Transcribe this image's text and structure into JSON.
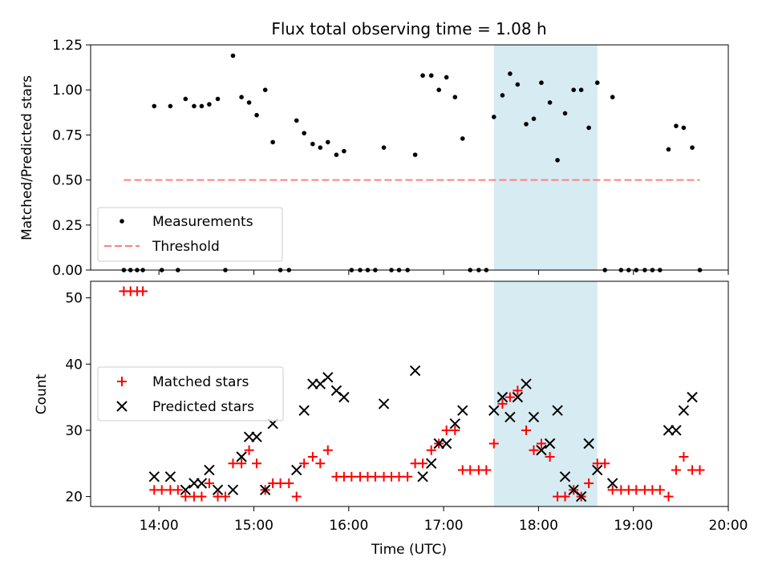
{
  "figure": {
    "title": "Flux total observing time = 1.08 h",
    "xlabel": "Time (UTC)",
    "xticks": [
      "14:00",
      "15:00",
      "16:00",
      "17:00",
      "18:00",
      "19:00",
      "20:00"
    ],
    "top_ylabel": "Matched/Predicted stars",
    "top_yticks": [
      "0.00",
      "0.25",
      "0.50",
      "0.75",
      "1.00",
      "1.25"
    ],
    "bottom_ylabel": "Count",
    "bottom_yticks": [
      "20",
      "30",
      "40",
      "50"
    ],
    "top_legend": [
      "Measurements",
      "Threshold"
    ],
    "bottom_legend": [
      "Matched stars",
      "Predicted stars"
    ]
  },
  "colors": {
    "measurement": "#000000",
    "threshold": "#ff7f7f",
    "matched": "#ff0000",
    "predicted": "#000000",
    "highlight": "#add8e6"
  },
  "chart_data": [
    {
      "type": "scatter",
      "title": "Flux total observing time = 1.08 h",
      "xlabel": "",
      "ylabel": "Matched/Predicted stars",
      "xlim": [
        13.28,
        20.0
      ],
      "ylim": [
        0.0,
        1.25
      ],
      "legend_position": "lower-left",
      "highlight_span": [
        17.53,
        18.62
      ],
      "threshold": {
        "name": "Threshold",
        "y": 0.5,
        "x": [
          13.63,
          19.7
        ]
      },
      "series": [
        {
          "name": "Measurements",
          "x": [
            13.63,
            13.7,
            13.77,
            13.83,
            13.95,
            14.03,
            14.12,
            14.2,
            14.28,
            14.37,
            14.45,
            14.53,
            14.62,
            14.7,
            14.78,
            14.87,
            14.95,
            15.03,
            15.12,
            15.2,
            15.28,
            15.37,
            15.45,
            15.53,
            15.62,
            15.7,
            15.78,
            15.87,
            15.95,
            16.03,
            16.12,
            16.2,
            16.28,
            16.37,
            16.45,
            16.53,
            16.62,
            16.7,
            16.78,
            16.87,
            16.95,
            17.03,
            17.12,
            17.2,
            17.28,
            17.37,
            17.45,
            17.53,
            17.62,
            17.7,
            17.78,
            17.87,
            17.95,
            18.03,
            18.12,
            18.2,
            18.28,
            18.37,
            18.45,
            18.53,
            18.62,
            18.7,
            18.78,
            18.87,
            18.95,
            19.03,
            19.12,
            19.2,
            19.28,
            19.37,
            19.45,
            19.53,
            19.62,
            19.7
          ],
          "y": [
            0.0,
            0.0,
            0.0,
            0.0,
            0.91,
            0.0,
            0.91,
            0.0,
            0.95,
            0.91,
            0.91,
            0.92,
            0.95,
            0.0,
            1.19,
            0.96,
            0.93,
            0.86,
            1.0,
            0.71,
            0.0,
            0.0,
            0.83,
            0.76,
            0.7,
            0.68,
            0.71,
            0.64,
            0.66,
            0.0,
            0.0,
            0.0,
            0.0,
            0.68,
            0.0,
            0.0,
            0.0,
            0.64,
            1.08,
            1.08,
            1.0,
            1.07,
            0.96,
            0.73,
            0.0,
            0.0,
            0.0,
            0.85,
            0.97,
            1.09,
            1.03,
            0.81,
            0.84,
            1.04,
            0.93,
            0.61,
            0.87,
            1.0,
            1.0,
            0.79,
            1.04,
            0.0,
            0.96,
            0.0,
            0.0,
            0.0,
            0.0,
            0.0,
            0.0,
            0.67,
            0.8,
            0.79,
            0.68,
            0.0
          ]
        }
      ]
    },
    {
      "type": "scatter",
      "title": "",
      "xlabel": "Time (UTC)",
      "ylabel": "Count",
      "xlim": [
        13.28,
        20.0
      ],
      "ylim": [
        18.5,
        52.5
      ],
      "legend_position": "center-left",
      "highlight_span": [
        17.53,
        18.62
      ],
      "series": [
        {
          "name": "Matched stars",
          "marker": "plus",
          "x": [
            13.63,
            13.7,
            13.77,
            13.83,
            13.95,
            14.03,
            14.12,
            14.2,
            14.28,
            14.37,
            14.45,
            14.53,
            14.62,
            14.7,
            14.78,
            14.87,
            14.95,
            15.03,
            15.12,
            15.2,
            15.28,
            15.37,
            15.45,
            15.53,
            15.62,
            15.7,
            15.78,
            15.87,
            15.95,
            16.03,
            16.12,
            16.2,
            16.28,
            16.37,
            16.45,
            16.53,
            16.62,
            16.7,
            16.78,
            16.87,
            16.95,
            17.03,
            17.12,
            17.2,
            17.28,
            17.37,
            17.45,
            17.53,
            17.62,
            17.7,
            17.78,
            17.87,
            17.95,
            18.03,
            18.12,
            18.2,
            18.28,
            18.37,
            18.45,
            18.53,
            18.62,
            18.7,
            18.78,
            18.87,
            18.95,
            19.03,
            19.12,
            19.2,
            19.28,
            19.37,
            19.45,
            19.53,
            19.62,
            19.7
          ],
          "y": [
            51,
            51,
            51,
            51,
            21,
            21,
            21,
            21,
            20,
            20,
            20,
            22,
            20,
            20,
            25,
            25,
            27,
            25,
            21,
            22,
            22,
            22,
            20,
            25,
            26,
            25,
            27,
            23,
            23,
            23,
            23,
            23,
            23,
            23,
            23,
            23,
            23,
            25,
            25,
            27,
            28,
            30,
            30,
            24,
            24,
            24,
            24,
            28,
            34,
            35,
            36,
            30,
            27,
            28,
            26,
            20,
            20,
            21,
            20,
            22,
            25,
            25,
            21,
            21,
            21,
            21,
            21,
            21,
            21,
            20,
            24,
            26,
            24,
            24
          ]
        },
        {
          "name": "Predicted stars",
          "marker": "x",
          "x": [
            13.95,
            14.12,
            14.28,
            14.37,
            14.45,
            14.53,
            14.62,
            14.78,
            14.87,
            14.95,
            15.03,
            15.12,
            15.2,
            15.45,
            15.53,
            15.62,
            15.7,
            15.78,
            15.87,
            15.95,
            16.37,
            16.7,
            16.78,
            16.87,
            16.95,
            17.03,
            17.12,
            17.2,
            17.53,
            17.62,
            17.7,
            17.78,
            17.87,
            17.95,
            18.03,
            18.12,
            18.2,
            18.28,
            18.37,
            18.45,
            18.53,
            18.62,
            18.78,
            19.37,
            19.45,
            19.53,
            19.62
          ],
          "y": [
            23,
            23,
            21,
            22,
            22,
            24,
            21,
            21,
            26,
            29,
            29,
            21,
            31,
            24,
            33,
            37,
            37,
            38,
            36,
            35,
            34,
            39,
            23,
            25,
            28,
            28,
            31,
            33,
            33,
            35,
            32,
            35,
            37,
            32,
            27,
            28,
            33,
            23,
            21,
            20,
            28,
            24,
            22,
            30,
            30,
            33,
            35
          ]
        }
      ]
    }
  ]
}
